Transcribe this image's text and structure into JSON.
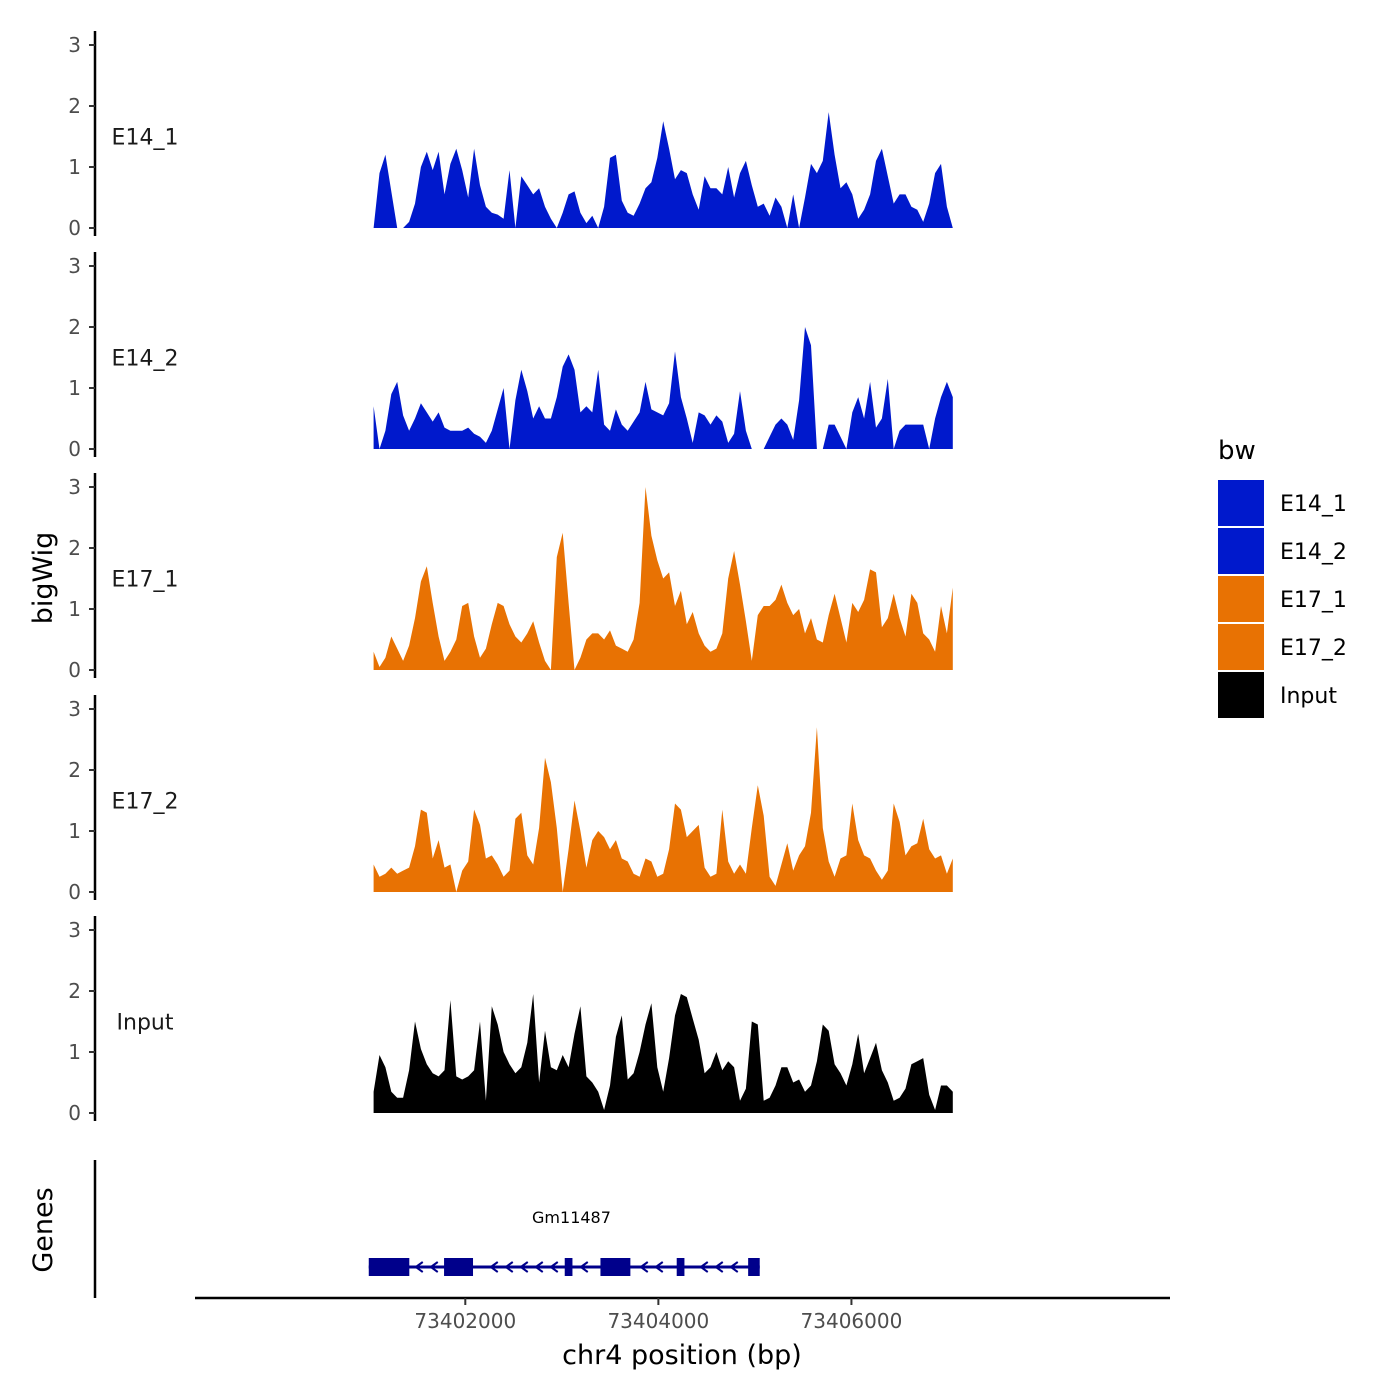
{
  "chart_data": {
    "type": "area",
    "title": "",
    "ylabel": "bigWig",
    "xlabel": "chr4 position (bp)",
    "genes_label": "Genes",
    "ylim": [
      0,
      3
    ],
    "yticks": [
      "0",
      "1",
      "2",
      "3"
    ],
    "xlim": [
      73399200,
      73409300
    ],
    "xticks": [
      {
        "value": 73402000,
        "label": "73402000"
      },
      {
        "value": 73404000,
        "label": "73404000"
      },
      {
        "value": 73406000,
        "label": "73406000"
      }
    ],
    "x_start": 73401050,
    "x_end": 73407050,
    "legend": {
      "title": "bw",
      "entries": [
        {
          "label": "E14_1",
          "color": "#0019CC"
        },
        {
          "label": "E14_2",
          "color": "#0019CC"
        },
        {
          "label": "E17_1",
          "color": "#E87203"
        },
        {
          "label": "E17_2",
          "color": "#E87203"
        },
        {
          "label": "Input",
          "color": "#000000"
        }
      ]
    },
    "series": [
      {
        "name": "E14_1",
        "color": "#0019CC",
        "values": [
          0,
          0.9,
          1.2,
          0.6,
          0,
          0,
          0.1,
          0.4,
          1.0,
          1.25,
          0.95,
          1.25,
          0.55,
          1.05,
          1.3,
          0.95,
          0.5,
          1.3,
          0.7,
          0.35,
          0.25,
          0.22,
          0.15,
          0.95,
          0,
          0.85,
          0.7,
          0.55,
          0.65,
          0.35,
          0.15,
          0,
          0.25,
          0.55,
          0.6,
          0.25,
          0.08,
          0.2,
          0,
          0.35,
          1.15,
          1.2,
          0.45,
          0.25,
          0.2,
          0.4,
          0.65,
          0.75,
          1.15,
          1.75,
          1.3,
          0.8,
          0.95,
          0.9,
          0.55,
          0.3,
          0.85,
          0.65,
          0.65,
          0.55,
          1.0,
          0.5,
          0.9,
          1.1,
          0.7,
          0.35,
          0.4,
          0.2,
          0.5,
          0.35,
          0,
          0.55,
          0,
          0.5,
          1.05,
          0.9,
          1.1,
          1.9,
          1.2,
          0.65,
          0.75,
          0.55,
          0.15,
          0.3,
          0.55,
          1.1,
          1.3,
          0.85,
          0.4,
          0.55,
          0.55,
          0.35,
          0.3,
          0.1,
          0.4,
          0.9,
          1.05,
          0.35,
          0
        ]
      },
      {
        "name": "E14_2",
        "color": "#0019CC",
        "values": [
          0.7,
          0,
          0.3,
          0.9,
          1.1,
          0.55,
          0.3,
          0.5,
          0.75,
          0.6,
          0.45,
          0.6,
          0.35,
          0.3,
          0.3,
          0.3,
          0.35,
          0.25,
          0.2,
          0.1,
          0.3,
          0.65,
          1.0,
          0,
          0.8,
          1.3,
          0.95,
          0.5,
          0.7,
          0.5,
          0.5,
          0.85,
          1.35,
          1.55,
          1.3,
          0.6,
          0.7,
          0.6,
          1.3,
          0.4,
          0.3,
          0.65,
          0.4,
          0.3,
          0.45,
          0.6,
          1.1,
          0.65,
          0.6,
          0.55,
          0.75,
          1.6,
          0.85,
          0.5,
          0.1,
          0.6,
          0.55,
          0.4,
          0.55,
          0.45,
          0.1,
          0.25,
          0.95,
          0.3,
          0,
          0,
          0,
          0.2,
          0.4,
          0.5,
          0.4,
          0.15,
          0.8,
          2.0,
          1.7,
          0,
          0,
          0.4,
          0.4,
          0.2,
          0,
          0.6,
          0.85,
          0.5,
          1.1,
          0.35,
          0.5,
          1.15,
          0,
          0.3,
          0.4,
          0.4,
          0.4,
          0.4,
          0,
          0.5,
          0.85,
          1.1,
          0.85
        ]
      },
      {
        "name": "E17_1",
        "color": "#E87203",
        "values": [
          0.3,
          0.05,
          0.2,
          0.55,
          0.35,
          0.15,
          0.4,
          0.85,
          1.45,
          1.7,
          1.1,
          0.55,
          0.15,
          0.3,
          0.5,
          1.05,
          1.1,
          0.55,
          0.2,
          0.35,
          0.75,
          1.1,
          1.05,
          0.75,
          0.55,
          0.45,
          0.6,
          0.8,
          0.45,
          0.15,
          0,
          1.85,
          2.25,
          1.1,
          0,
          0.2,
          0.5,
          0.6,
          0.6,
          0.5,
          0.65,
          0.4,
          0.35,
          0.3,
          0.5,
          1.1,
          3.0,
          2.2,
          1.8,
          1.5,
          1.6,
          1.05,
          1.3,
          0.75,
          0.95,
          0.6,
          0.4,
          0.3,
          0.35,
          0.6,
          1.5,
          1.95,
          1.4,
          0.8,
          0.15,
          0.9,
          1.05,
          1.05,
          1.15,
          1.4,
          1.1,
          0.9,
          1.0,
          0.6,
          0.85,
          0.5,
          0.45,
          0.9,
          1.25,
          0.85,
          0.45,
          1.1,
          0.95,
          1.15,
          1.65,
          1.6,
          0.7,
          0.85,
          1.25,
          0.85,
          0.55,
          1.25,
          1.1,
          0.6,
          0.5,
          0.3,
          1.05,
          0.6,
          1.35
        ]
      },
      {
        "name": "E17_2",
        "color": "#E87203",
        "values": [
          0.45,
          0.25,
          0.3,
          0.4,
          0.3,
          0.35,
          0.4,
          0.75,
          1.35,
          1.3,
          0.55,
          0.85,
          0.4,
          0.45,
          0,
          0.35,
          0.5,
          1.35,
          1.1,
          0.55,
          0.6,
          0.45,
          0.25,
          0.35,
          1.2,
          1.3,
          0.6,
          0.45,
          1.05,
          2.2,
          1.8,
          1.05,
          0,
          0.7,
          1.5,
          1.0,
          0.4,
          0.85,
          1.0,
          0.9,
          0.7,
          0.85,
          0.55,
          0.5,
          0.3,
          0.25,
          0.55,
          0.5,
          0.25,
          0.3,
          0.7,
          1.45,
          1.35,
          0.9,
          1.0,
          1.1,
          0.4,
          0.25,
          0.3,
          1.35,
          0.5,
          0.3,
          0.45,
          0.3,
          1.05,
          1.75,
          1.25,
          0.25,
          0.1,
          0.45,
          0.8,
          0.35,
          0.6,
          0.75,
          1.3,
          2.7,
          1.05,
          0.5,
          0.25,
          0.55,
          0.6,
          1.45,
          0.85,
          0.6,
          0.55,
          0.35,
          0.2,
          0.35,
          1.45,
          1.15,
          0.6,
          0.75,
          0.8,
          1.2,
          0.7,
          0.55,
          0.6,
          0.3,
          0.55
        ]
      },
      {
        "name": "Input",
        "color": "#000000",
        "values": [
          0.35,
          0.95,
          0.75,
          0.35,
          0.25,
          0.25,
          0.7,
          1.5,
          1.05,
          0.8,
          0.65,
          0.6,
          0.7,
          1.85,
          0.6,
          0.55,
          0.6,
          0.7,
          1.5,
          0.2,
          1.75,
          1.45,
          1.0,
          0.8,
          0.65,
          0.75,
          1.15,
          1.95,
          0.5,
          1.35,
          0.75,
          0.7,
          0.95,
          0.75,
          1.3,
          1.75,
          0.6,
          0.5,
          0.35,
          0.05,
          0.45,
          1.25,
          1.6,
          0.55,
          0.65,
          1.0,
          1.45,
          1.8,
          0.75,
          0.35,
          0.9,
          1.6,
          1.95,
          1.9,
          1.55,
          1.2,
          0.65,
          0.75,
          1.0,
          0.7,
          0.85,
          0.75,
          0.2,
          0.4,
          1.5,
          1.45,
          0.2,
          0.25,
          0.45,
          0.75,
          0.75,
          0.5,
          0.55,
          0.35,
          0.45,
          0.85,
          1.45,
          1.35,
          0.8,
          0.65,
          0.45,
          0.8,
          1.3,
          0.65,
          0.9,
          1.15,
          0.7,
          0.5,
          0.2,
          0.25,
          0.4,
          0.8,
          0.85,
          0.9,
          0.3,
          0.05,
          0.45,
          0.45,
          0.35
        ]
      }
    ],
    "gene": {
      "name": "Gm11487",
      "strand": "-",
      "color": "#00008B",
      "start": 73401000,
      "end": 73405050,
      "exons": [
        {
          "start": 73401000,
          "end": 73401420
        },
        {
          "start": 73401780,
          "end": 73402080
        },
        {
          "start": 73403030,
          "end": 73403110
        },
        {
          "start": 73403400,
          "end": 73403710
        },
        {
          "start": 73404190,
          "end": 73404270
        },
        {
          "start": 73404930,
          "end": 73405050
        }
      ]
    }
  }
}
